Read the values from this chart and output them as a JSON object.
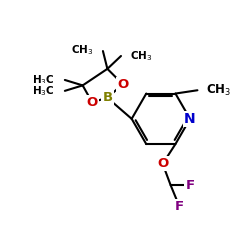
{
  "bg_color": "#ffffff",
  "atom_colors": {
    "C": "#000000",
    "H": "#000000",
    "N": "#0000cc",
    "O": "#cc0000",
    "B": "#808000",
    "F": "#800080"
  },
  "bond_lw": 1.5,
  "fig_size": [
    2.5,
    2.5
  ],
  "dpi": 100
}
